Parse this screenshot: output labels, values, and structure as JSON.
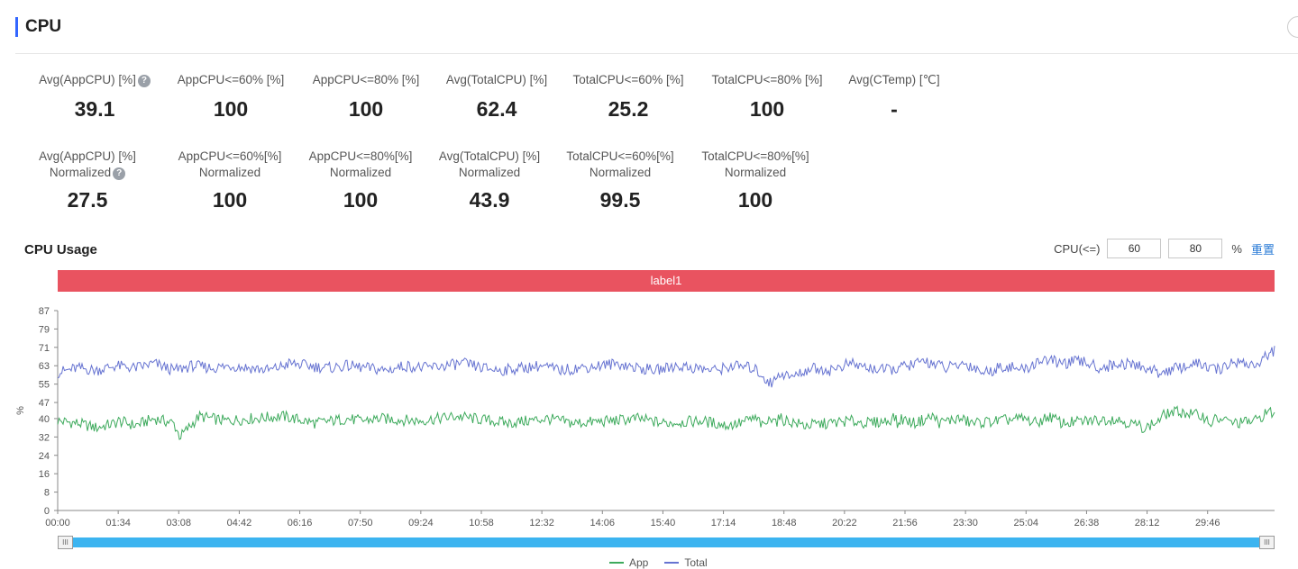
{
  "header": {
    "title": "CPU"
  },
  "metrics_row1": [
    {
      "label": "Avg(AppCPU) [%]",
      "value": "39.1",
      "help": true
    },
    {
      "label": "AppCPU<=60% [%]",
      "value": "100"
    },
    {
      "label": "AppCPU<=80% [%]",
      "value": "100"
    },
    {
      "label": "Avg(TotalCPU) [%]",
      "value": "62.4"
    },
    {
      "label": "TotalCPU<=60% [%]",
      "value": "25.2"
    },
    {
      "label": "TotalCPU<=80% [%]",
      "value": "100"
    },
    {
      "label": "Avg(CTemp) [℃]",
      "value": "-"
    }
  ],
  "metrics_row2": [
    {
      "label": "Avg(AppCPU) [%]",
      "sub": "Normalized",
      "value": "27.5",
      "help": true
    },
    {
      "label": "AppCPU<=60%[%]",
      "sub": "Normalized",
      "value": "100"
    },
    {
      "label": "AppCPU<=80%[%]",
      "sub": "Normalized",
      "value": "100"
    },
    {
      "label": "Avg(TotalCPU) [%]",
      "sub": "Normalized",
      "value": "43.9"
    },
    {
      "label": "TotalCPU<=60%[%]",
      "sub": "Normalized",
      "value": "99.5"
    },
    {
      "label": "TotalCPU<=80%[%]",
      "sub": "Normalized",
      "value": "100"
    }
  ],
  "usage": {
    "title": "CPU Usage",
    "cpu_label": "CPU(<=)",
    "threshold1": "60",
    "threshold2": "80",
    "unit": "%",
    "reset_label": "重置",
    "label_bar": "label1"
  },
  "chart_data": {
    "type": "line",
    "ylabel": "%",
    "ylim": [
      0,
      87
    ],
    "yticks": [
      "0",
      "8",
      "16",
      "24",
      "32",
      "40",
      "47",
      "55",
      "63",
      "71",
      "79",
      "87"
    ],
    "xticks": [
      "00:00",
      "01:34",
      "03:08",
      "04:42",
      "06:16",
      "07:50",
      "09:24",
      "10:58",
      "12:32",
      "14:06",
      "15:40",
      "17:14",
      "18:48",
      "20:22",
      "21:56",
      "23:30",
      "25:04",
      "26:38",
      "28:12",
      "29:46"
    ],
    "xlim_seconds": [
      0,
      1890
    ],
    "series": [
      {
        "name": "App",
        "color": "#3daa5c",
        "x": [
          0,
          30,
          60,
          90,
          94,
          120,
          150,
          180,
          190,
          220,
          260,
          300,
          350,
          400,
          450,
          470,
          500,
          560,
          620,
          700,
          760,
          800,
          860,
          900,
          940,
          1000,
          1040,
          1060,
          1080,
          1090,
          1095,
          1100,
          1105,
          1112,
          1116,
          1120,
          1160,
          1200,
          1230,
          1260,
          1290,
          1300,
          1304,
          1310,
          1330,
          1360,
          1370,
          1380,
          1400,
          1420,
          1460,
          1500,
          1520,
          1540,
          1560,
          1600,
          1640,
          1690,
          1710,
          1720,
          1740,
          1780,
          1790,
          1800,
          1830,
          1860,
          1880,
          1890
        ],
        "y": [
          39,
          38,
          36,
          38,
          39,
          37,
          40,
          38,
          32,
          41,
          39,
          40,
          41,
          38,
          40,
          39,
          40,
          39,
          41,
          38,
          40,
          38,
          39,
          40,
          38,
          39,
          37,
          38,
          40,
          39,
          36,
          38,
          39,
          42,
          38,
          40,
          37,
          38,
          39,
          38,
          39,
          41,
          37,
          40,
          38,
          41,
          38,
          39,
          40,
          38,
          39,
          40,
          38,
          41,
          38,
          39,
          40,
          36,
          39,
          42,
          43,
          41,
          38,
          40,
          38,
          39,
          43,
          42
        ]
      },
      {
        "name": "Total",
        "color": "#6673d1",
        "x": [
          0,
          30,
          60,
          90,
          120,
          150,
          180,
          210,
          240,
          270,
          300,
          330,
          360,
          390,
          420,
          450,
          480,
          510,
          540,
          570,
          600,
          630,
          660,
          690,
          720,
          750,
          780,
          810,
          840,
          870,
          900,
          930,
          960,
          990,
          1020,
          1050,
          1080,
          1090,
          1100,
          1110,
          1120,
          1140,
          1170,
          1200,
          1230,
          1260,
          1290,
          1320,
          1350,
          1380,
          1410,
          1440,
          1470,
          1500,
          1530,
          1560,
          1590,
          1620,
          1650,
          1680,
          1710,
          1740,
          1770,
          1800,
          1830,
          1860,
          1890
        ],
        "y": [
          60,
          62,
          61,
          63,
          62,
          64,
          61,
          63,
          62,
          63,
          62,
          61,
          64,
          63,
          62,
          63,
          62,
          61,
          63,
          62,
          63,
          64,
          62,
          61,
          62,
          63,
          61,
          62,
          63,
          64,
          62,
          61,
          63,
          62,
          61,
          63,
          62,
          60,
          57,
          55,
          60,
          58,
          62,
          61,
          64,
          62,
          61,
          63,
          65,
          62,
          64,
          60,
          63,
          61,
          66,
          64,
          65,
          62,
          64,
          63,
          60,
          62,
          64,
          61,
          65,
          63,
          70
        ]
      }
    ]
  },
  "legend": [
    {
      "name": "App",
      "color": "#3daa5c"
    },
    {
      "name": "Total",
      "color": "#6673d1"
    }
  ],
  "slider": {
    "handle_glyph": "III"
  }
}
